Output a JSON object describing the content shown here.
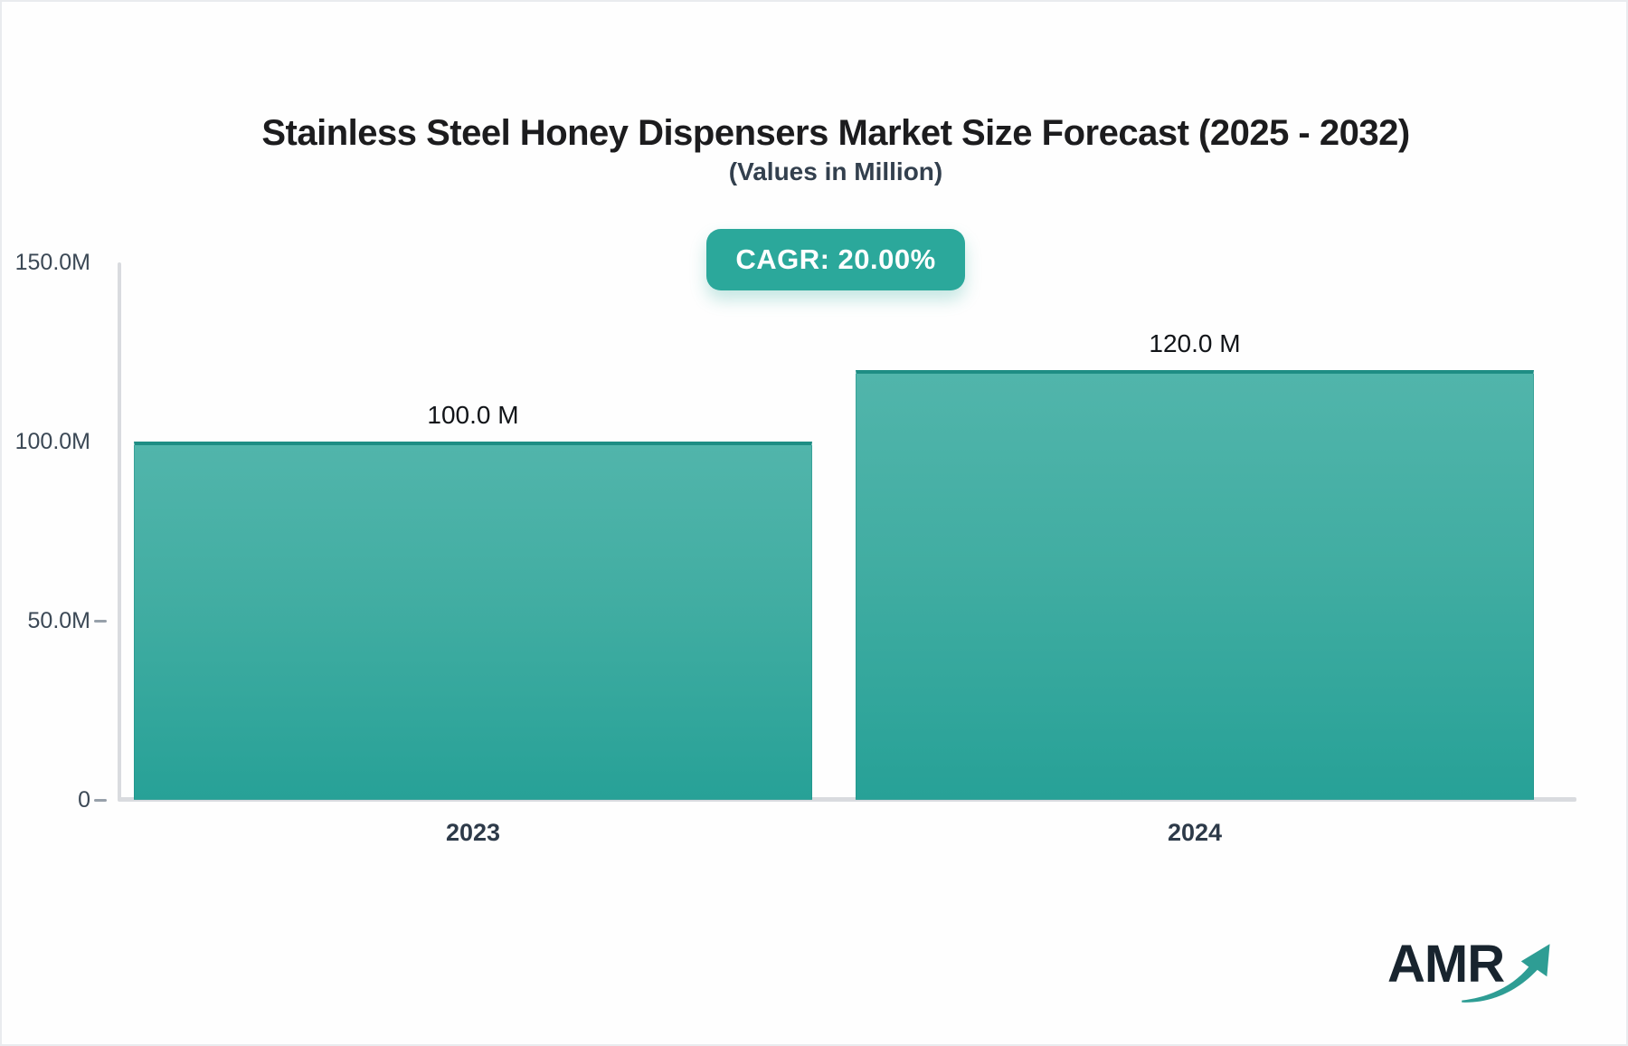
{
  "chart_data": {
    "type": "bar",
    "title": "Stainless Steel Honey Dispensers Market Size Forecast (2025 - 2032)",
    "subtitle": "(Values in Million)",
    "cagr_label": "CAGR: 20.00%",
    "categories": [
      "2023",
      "2024"
    ],
    "values": [
      100.0,
      120.0
    ],
    "bar_labels": [
      "100.0 M",
      "120.0 M"
    ],
    "y_ticks": [
      "150.0M",
      "100.0M",
      "50.0M",
      "0"
    ],
    "y_tick_values": [
      150,
      100,
      50,
      0
    ],
    "ylim": [
      0,
      150
    ],
    "xlabel": "",
    "ylabel": "",
    "grid": false,
    "legend_position": "none"
  },
  "branding": {
    "logo_text": "AMR"
  },
  "colors": {
    "badge_background": "#2ba89b",
    "badge_text": "#ffffff",
    "bar_gradient_top": "#51b5ab",
    "bar_gradient_bottom": "#27a197",
    "bar_top_stroke": "#1e8d84",
    "axis_line": "#d9dbdf",
    "title_text": "#1c1c1e",
    "subtitle_text": "#33404e",
    "tick_label_text": "#3b4855",
    "logo_text": "#18242e",
    "logo_arrow": "#2e9d94"
  }
}
